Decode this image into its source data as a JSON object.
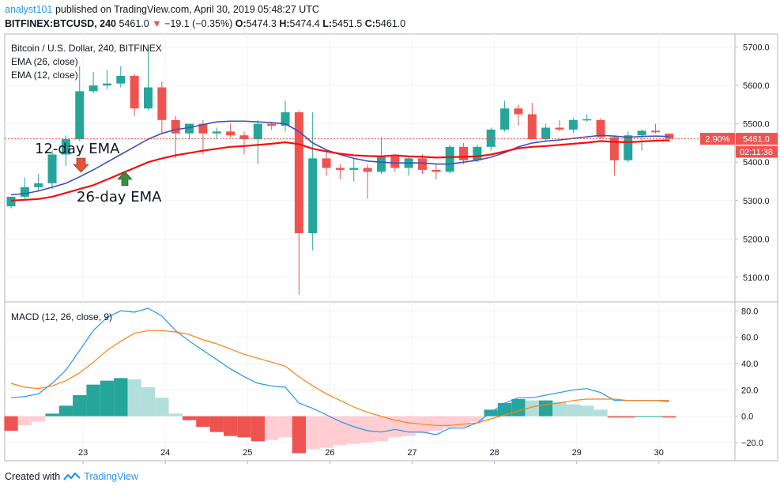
{
  "header": {
    "publisher": "analyst101",
    "published_text": "published on TradingView.com, April 30, 2019 05:48:27 UTC",
    "symbol": "BITFINEX:BTCUSD, 240",
    "price": "5461.0",
    "change_arrow": "▼",
    "change": "−19.1 (−0.35%)",
    "ohlc": {
      "o_label": "O:",
      "o": "5474.3",
      "h_label": "H:",
      "h": "5474.4",
      "l_label": "L:",
      "l": "5451.5",
      "c_label": "C:",
      "c": "5461.0"
    }
  },
  "legend": {
    "title": "Bitcoin / U.S. Dollar, 240, BITFINEX",
    "ema26": "EMA (26, close)",
    "ema12": "EMA (12, close)",
    "macd": "MACD (12, 26, close, 9)"
  },
  "annotations": {
    "ema12_label": "12-day EMA",
    "ema26_label": "26-day EMA"
  },
  "price_tag": {
    "percent": "2.90%",
    "price": "5461.0",
    "countdown": "02:11:38"
  },
  "footer": {
    "created_with": "Created with",
    "brand": "TradingView"
  },
  "colors": {
    "up": "#26a69a",
    "down": "#ef5350",
    "ema12": "#3f51b5",
    "ema26": "#f21010",
    "macd": "#2196f3",
    "signal": "#ff7f0e",
    "hist_up_strong": "#26a69a",
    "hist_up_weak": "#b2dfdb",
    "hist_dn_strong": "#ef5350",
    "hist_dn_weak": "#ffcdd2",
    "price_tag": "#ef5350"
  },
  "chart_data": [
    {
      "type": "candlestick",
      "title": "Bitcoin / U.S. Dollar, 240, BITFINEX",
      "x_ticks": [
        "23",
        "24",
        "25",
        "26",
        "27",
        "28",
        "29",
        "30"
      ],
      "y_ticks": [
        5100.0,
        5200.0,
        5300.0,
        5400.0,
        5500.0,
        5600.0,
        5700.0
      ],
      "ylim": [
        5040,
        5730
      ],
      "candles": [
        {
          "i": 0,
          "o": 5285,
          "h": 5310,
          "l": 5280,
          "c": 5310
        },
        {
          "i": 1,
          "o": 5310,
          "h": 5360,
          "l": 5305,
          "c": 5335
        },
        {
          "i": 2,
          "o": 5335,
          "h": 5370,
          "l": 5325,
          "c": 5345
        },
        {
          "i": 3,
          "o": 5345,
          "h": 5430,
          "l": 5330,
          "c": 5420
        },
        {
          "i": 4,
          "o": 5420,
          "h": 5470,
          "l": 5390,
          "c": 5460
        },
        {
          "i": 5,
          "o": 5460,
          "h": 5650,
          "l": 5455,
          "c": 5585
        },
        {
          "i": 6,
          "o": 5585,
          "h": 5635,
          "l": 5580,
          "c": 5600
        },
        {
          "i": 7,
          "o": 5600,
          "h": 5640,
          "l": 5590,
          "c": 5605
        },
        {
          "i": 8,
          "o": 5605,
          "h": 5650,
          "l": 5595,
          "c": 5625
        },
        {
          "i": 9,
          "o": 5625,
          "h": 5630,
          "l": 5520,
          "c": 5540
        },
        {
          "i": 10,
          "o": 5540,
          "h": 5700,
          "l": 5535,
          "c": 5595
        },
        {
          "i": 11,
          "o": 5595,
          "h": 5610,
          "l": 5475,
          "c": 5510
        },
        {
          "i": 12,
          "o": 5510,
          "h": 5520,
          "l": 5410,
          "c": 5475
        },
        {
          "i": 13,
          "o": 5475,
          "h": 5500,
          "l": 5460,
          "c": 5500
        },
        {
          "i": 14,
          "o": 5500,
          "h": 5510,
          "l": 5420,
          "c": 5475
        },
        {
          "i": 15,
          "o": 5475,
          "h": 5490,
          "l": 5460,
          "c": 5480
        },
        {
          "i": 16,
          "o": 5480,
          "h": 5500,
          "l": 5465,
          "c": 5470
        },
        {
          "i": 17,
          "o": 5470,
          "h": 5480,
          "l": 5420,
          "c": 5460
        },
        {
          "i": 18,
          "o": 5460,
          "h": 5510,
          "l": 5395,
          "c": 5500
        },
        {
          "i": 19,
          "o": 5500,
          "h": 5505,
          "l": 5485,
          "c": 5495
        },
        {
          "i": 20,
          "o": 5495,
          "h": 5560,
          "l": 5480,
          "c": 5530
        },
        {
          "i": 21,
          "o": 5530,
          "h": 5535,
          "l": 5055,
          "c": 5215
        },
        {
          "i": 22,
          "o": 5215,
          "h": 5530,
          "l": 5170,
          "c": 5410
        },
        {
          "i": 23,
          "o": 5410,
          "h": 5430,
          "l": 5365,
          "c": 5385
        },
        {
          "i": 24,
          "o": 5385,
          "h": 5395,
          "l": 5355,
          "c": 5380
        },
        {
          "i": 25,
          "o": 5380,
          "h": 5410,
          "l": 5350,
          "c": 5385
        },
        {
          "i": 26,
          "o": 5385,
          "h": 5395,
          "l": 5305,
          "c": 5375
        },
        {
          "i": 27,
          "o": 5375,
          "h": 5465,
          "l": 5370,
          "c": 5415
        },
        {
          "i": 28,
          "o": 5415,
          "h": 5420,
          "l": 5375,
          "c": 5385
        },
        {
          "i": 29,
          "o": 5385,
          "h": 5415,
          "l": 5365,
          "c": 5410
        },
        {
          "i": 30,
          "o": 5410,
          "h": 5420,
          "l": 5370,
          "c": 5380
        },
        {
          "i": 31,
          "o": 5380,
          "h": 5395,
          "l": 5355,
          "c": 5375
        },
        {
          "i": 32,
          "o": 5375,
          "h": 5445,
          "l": 5370,
          "c": 5440
        },
        {
          "i": 33,
          "o": 5440,
          "h": 5450,
          "l": 5395,
          "c": 5405
        },
        {
          "i": 34,
          "o": 5405,
          "h": 5445,
          "l": 5400,
          "c": 5440
        },
        {
          "i": 35,
          "o": 5440,
          "h": 5490,
          "l": 5430,
          "c": 5485
        },
        {
          "i": 36,
          "o": 5485,
          "h": 5560,
          "l": 5480,
          "c": 5540
        },
        {
          "i": 37,
          "o": 5540,
          "h": 5550,
          "l": 5495,
          "c": 5525
        },
        {
          "i": 38,
          "o": 5525,
          "h": 5555,
          "l": 5460,
          "c": 5460
        },
        {
          "i": 39,
          "o": 5460,
          "h": 5500,
          "l": 5455,
          "c": 5490
        },
        {
          "i": 40,
          "o": 5490,
          "h": 5510,
          "l": 5480,
          "c": 5485
        },
        {
          "i": 41,
          "o": 5485,
          "h": 5515,
          "l": 5475,
          "c": 5510
        },
        {
          "i": 42,
          "o": 5510,
          "h": 5525,
          "l": 5505,
          "c": 5512
        },
        {
          "i": 43,
          "o": 5510,
          "h": 5515,
          "l": 5460,
          "c": 5465
        },
        {
          "i": 44,
          "o": 5465,
          "h": 5470,
          "l": 5365,
          "c": 5405
        },
        {
          "i": 45,
          "o": 5405,
          "h": 5480,
          "l": 5400,
          "c": 5470
        },
        {
          "i": 46,
          "o": 5470,
          "h": 5485,
          "l": 5430,
          "c": 5482
        },
        {
          "i": 47,
          "o": 5482,
          "h": 5500,
          "l": 5475,
          "c": 5478
        },
        {
          "i": 48,
          "o": 5474.3,
          "h": 5474.4,
          "l": 5451.5,
          "c": 5461
        }
      ],
      "series": [
        {
          "name": "EMA (12, close)",
          "values": [
            5315,
            5318,
            5325,
            5335,
            5345,
            5362,
            5380,
            5400,
            5420,
            5440,
            5460,
            5475,
            5485,
            5490,
            5498,
            5505,
            5507,
            5507,
            5505,
            5503,
            5500,
            5480,
            5450,
            5432,
            5420,
            5410,
            5403,
            5400,
            5398,
            5398,
            5398,
            5395,
            5395,
            5400,
            5405,
            5413,
            5425,
            5440,
            5450,
            5455,
            5458,
            5462,
            5466,
            5470,
            5468,
            5465,
            5467,
            5468,
            5467
          ]
        },
        {
          "name": "EMA (26, close)",
          "values": [
            5300,
            5302,
            5304,
            5310,
            5320,
            5330,
            5340,
            5355,
            5370,
            5385,
            5400,
            5410,
            5418,
            5424,
            5430,
            5435,
            5440,
            5442,
            5445,
            5448,
            5452,
            5447,
            5435,
            5428,
            5422,
            5418,
            5416,
            5415,
            5418,
            5415,
            5414,
            5412,
            5413,
            5414,
            5415,
            5420,
            5428,
            5436,
            5440,
            5442,
            5445,
            5448,
            5451,
            5455,
            5453,
            5452,
            5454,
            5456,
            5457
          ]
        }
      ]
    },
    {
      "type": "macd",
      "title": "MACD (12, 26, close, 9)",
      "y_ticks": [
        -20.0,
        0.0,
        20.0,
        40.0,
        60.0,
        80.0
      ],
      "ylim": [
        -32,
        85
      ],
      "series": [
        {
          "name": "MACD",
          "values": [
            14,
            15,
            17,
            25,
            35,
            50,
            65,
            75,
            80,
            79,
            82,
            76,
            65,
            57,
            50,
            43,
            36,
            30,
            25,
            23,
            22,
            10,
            6,
            1,
            -4,
            -8,
            -11,
            -12,
            -10,
            -12,
            -12,
            -14,
            -9,
            -9,
            -5,
            3,
            10,
            14,
            14,
            16,
            18,
            20,
            21,
            18,
            12,
            12,
            12,
            12,
            11
          ]
        },
        {
          "name": "Signal",
          "values": [
            25,
            22,
            21,
            23,
            27,
            33,
            41,
            50,
            57,
            63,
            65,
            65,
            64,
            62,
            58,
            55,
            51,
            47,
            44,
            41,
            38,
            30,
            23,
            17,
            12,
            7,
            3,
            0,
            -3,
            -5,
            -6,
            -7,
            -7,
            -6,
            -5,
            -2,
            1,
            4,
            7,
            9,
            10,
            12,
            13,
            13,
            13,
            12,
            12,
            12,
            12
          ]
        }
      ],
      "histogram": [
        -11,
        -7,
        -4,
        2,
        8,
        16,
        24,
        27,
        29,
        28,
        22,
        14,
        2,
        -3,
        -8,
        -12,
        -15,
        -16,
        -19,
        -18,
        -16,
        -28,
        -25,
        -24,
        -22,
        -21,
        -20,
        -19,
        -16,
        -15,
        -13,
        -11,
        -9,
        -8,
        -4,
        5,
        10,
        13,
        12,
        12,
        11,
        9,
        8,
        5,
        -1,
        -1,
        0,
        0,
        -1
      ]
    }
  ]
}
